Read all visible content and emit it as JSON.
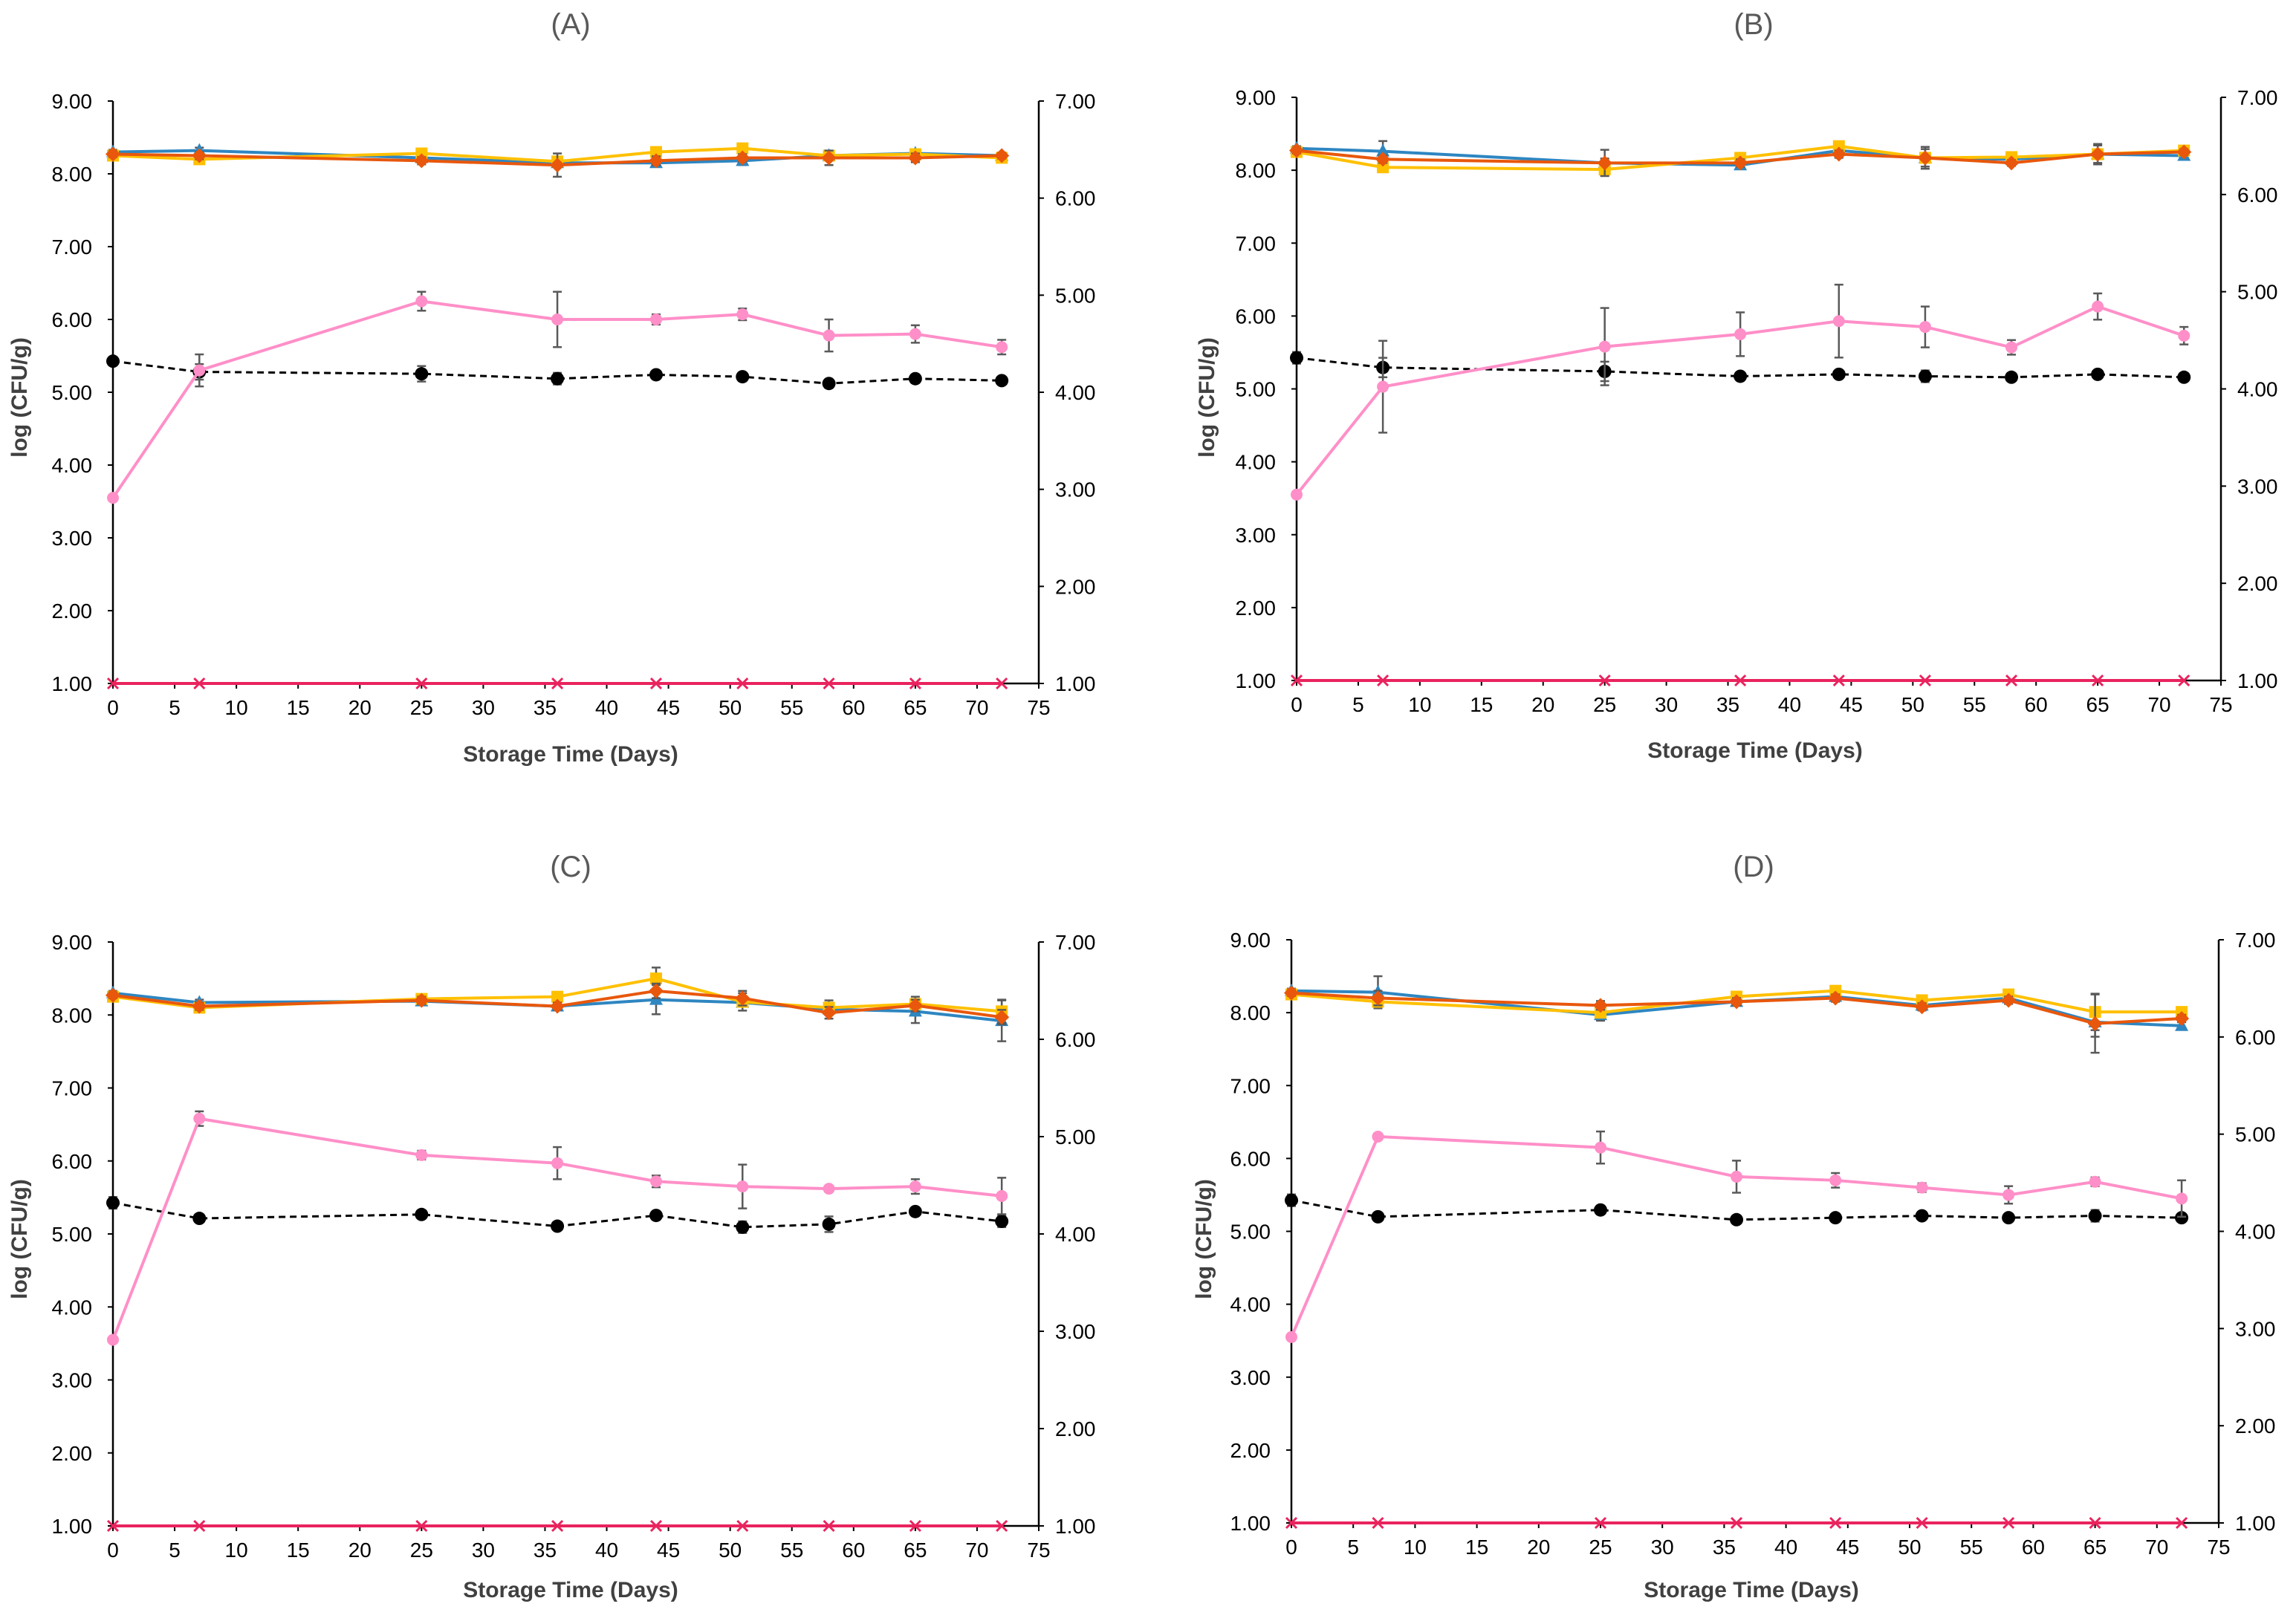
{
  "colors": {
    "blue": "#2E86C1",
    "orange": "#FFC000",
    "red": "#E8570C",
    "pink": "#FF8FC8",
    "black": "#000000",
    "magenta": "#E9235E"
  },
  "chart_data": [
    {
      "panel": "A",
      "title": "(A)",
      "type": "line",
      "xlabel": "Storage Time (Days)",
      "ylabel": "log (CFU/g)",
      "xlim": [
        0,
        75
      ],
      "ylim_left": [
        1,
        9
      ],
      "ylim_right": [
        1,
        7
      ],
      "x_ticks": [
        "0",
        "5",
        "10",
        "15",
        "20",
        "25",
        "30",
        "35",
        "40",
        "45",
        "50",
        "55",
        "60",
        "65",
        "70",
        "75"
      ],
      "y_left_ticks": [
        "1.00",
        "2.00",
        "3.00",
        "4.00",
        "5.00",
        "6.00",
        "7.00",
        "8.00",
        "9.00"
      ],
      "y_right_ticks": [
        "1.00",
        "2.00",
        "3.00",
        "4.00",
        "5.00",
        "6.00",
        "7.00"
      ],
      "x": [
        0,
        7,
        25,
        36,
        44,
        51,
        58,
        65,
        72
      ],
      "series": [
        {
          "name": "blue",
          "axis": "left",
          "color": "#2E86C1",
          "marker": "triangle",
          "values": [
            8.3,
            8.32,
            8.22,
            8.15,
            8.15,
            8.18,
            8.25,
            8.28,
            8.25
          ],
          "err": [
            0.03,
            0.04,
            0.04,
            0.05,
            0.05,
            0.06,
            0.04,
            0.04,
            0.03
          ]
        },
        {
          "name": "orange",
          "axis": "left",
          "color": "#FFC000",
          "marker": "square",
          "values": [
            8.25,
            8.2,
            8.28,
            8.17,
            8.3,
            8.35,
            8.25,
            8.27,
            8.22
          ],
          "err": [
            0.03,
            0.04,
            0.04,
            0.05,
            0.05,
            0.04,
            0.04,
            0.04,
            0.04
          ]
        },
        {
          "name": "red",
          "axis": "left",
          "color": "#E8570C",
          "marker": "diamond",
          "values": [
            8.27,
            8.25,
            8.18,
            8.12,
            8.18,
            8.22,
            8.22,
            8.22,
            8.25
          ],
          "err": [
            0.04,
            0.05,
            0.05,
            0.16,
            0.06,
            0.05,
            0.1,
            0.06,
            0.04
          ]
        },
        {
          "name": "pink",
          "axis": "left",
          "color": "#FF8FC8",
          "marker": "circle",
          "values": [
            3.55,
            5.3,
            6.25,
            6.0,
            6.0,
            6.07,
            5.78,
            5.8,
            5.62
          ],
          "err": [
            0.03,
            0.22,
            0.13,
            0.38,
            0.07,
            0.08,
            0.22,
            0.12,
            0.1
          ]
        },
        {
          "name": "black",
          "axis": "right",
          "color": "#000000",
          "marker": "circle",
          "dashed": true,
          "values": [
            4.32,
            4.21,
            4.19,
            4.14,
            4.18,
            4.16,
            4.09,
            4.14,
            4.12
          ],
          "err": [
            0.02,
            0.08,
            0.08,
            0.06,
            0.03,
            0.03,
            0.03,
            0.03,
            0.03
          ]
        },
        {
          "name": "magenta",
          "axis": "left",
          "color": "#E9235E",
          "marker": "x",
          "values": [
            1,
            1,
            1,
            1,
            1,
            1,
            1,
            1,
            1
          ],
          "err": [
            0,
            0,
            0,
            0,
            0,
            0,
            0,
            0,
            0
          ]
        }
      ]
    },
    {
      "panel": "B",
      "title": "(B)",
      "type": "line",
      "xlabel": "Storage Time (Days)",
      "ylabel": "log (CFU/g)",
      "xlim": [
        0,
        75
      ],
      "ylim_left": [
        1,
        9
      ],
      "ylim_right": [
        1,
        7
      ],
      "x_ticks": [
        "0",
        "5",
        "10",
        "15",
        "20",
        "25",
        "30",
        "35",
        "40",
        "45",
        "50",
        "55",
        "60",
        "65",
        "70",
        "75"
      ],
      "y_left_ticks": [
        "1.00",
        "2.00",
        "3.00",
        "4.00",
        "5.00",
        "6.00",
        "7.00",
        "8.00",
        "9.00"
      ],
      "y_right_ticks": [
        "1.00",
        "2.00",
        "3.00",
        "4.00",
        "5.00",
        "6.00",
        "7.00"
      ],
      "x": [
        0,
        7,
        25,
        36,
        44,
        51,
        58,
        65,
        72
      ],
      "series": [
        {
          "name": "blue",
          "axis": "left",
          "color": "#2E86C1",
          "marker": "triangle",
          "values": [
            8.3,
            8.26,
            8.1,
            8.07,
            8.27,
            8.17,
            8.15,
            8.22,
            8.2
          ],
          "err": [
            0.03,
            0.14,
            0.06,
            0.05,
            0.05,
            0.05,
            0.04,
            0.12,
            0.05
          ]
        },
        {
          "name": "orange",
          "axis": "left",
          "color": "#FFC000",
          "marker": "square",
          "values": [
            8.25,
            8.04,
            8.01,
            8.17,
            8.33,
            8.17,
            8.18,
            8.22,
            8.27
          ],
          "err": [
            0.03,
            0.05,
            0.08,
            0.05,
            0.04,
            0.15,
            0.04,
            0.04,
            0.04
          ]
        },
        {
          "name": "red",
          "axis": "left",
          "color": "#E8570C",
          "marker": "diamond",
          "values": [
            8.27,
            8.15,
            8.1,
            8.1,
            8.22,
            8.17,
            8.1,
            8.22,
            8.25
          ],
          "err": [
            0.04,
            0.05,
            0.18,
            0.05,
            0.05,
            0.12,
            0.04,
            0.14,
            0.04
          ]
        },
        {
          "name": "pink",
          "axis": "left",
          "color": "#FF8FC8",
          "marker": "circle",
          "values": [
            3.55,
            5.03,
            5.58,
            5.75,
            5.93,
            5.85,
            5.57,
            6.13,
            5.73
          ],
          "err": [
            0.03,
            0.63,
            0.53,
            0.3,
            0.5,
            0.28,
            0.1,
            0.18,
            0.12
          ]
        },
        {
          "name": "black",
          "axis": "right",
          "color": "#000000",
          "marker": "circle",
          "dashed": true,
          "values": [
            4.32,
            4.22,
            4.18,
            4.13,
            4.15,
            4.13,
            4.12,
            4.15,
            4.12
          ],
          "err": [
            0.06,
            0.1,
            0.1,
            0.04,
            0.04,
            0.06,
            0.04,
            0.04,
            0.03
          ]
        },
        {
          "name": "magenta",
          "axis": "left",
          "color": "#E9235E",
          "marker": "x",
          "values": [
            1,
            1,
            1,
            1,
            1,
            1,
            1,
            1,
            1
          ],
          "err": [
            0,
            0,
            0,
            0,
            0,
            0,
            0,
            0,
            0
          ]
        }
      ]
    },
    {
      "panel": "C",
      "title": "(C)",
      "type": "line",
      "xlabel": "Storage Time (Days)",
      "ylabel": "log (CFU/g)",
      "xlim": [
        0,
        75
      ],
      "ylim_left": [
        1,
        9
      ],
      "ylim_right": [
        1,
        7
      ],
      "x_ticks": [
        "0",
        "5",
        "10",
        "15",
        "20",
        "25",
        "30",
        "35",
        "40",
        "45",
        "50",
        "55",
        "60",
        "65",
        "70",
        "75"
      ],
      "y_left_ticks": [
        "1.00",
        "2.00",
        "3.00",
        "4.00",
        "5.00",
        "6.00",
        "7.00",
        "8.00",
        "9.00"
      ],
      "y_right_ticks": [
        "1.00",
        "2.00",
        "3.00",
        "4.00",
        "5.00",
        "6.00",
        "7.00"
      ],
      "x": [
        0,
        7,
        25,
        36,
        44,
        51,
        58,
        65,
        72
      ],
      "series": [
        {
          "name": "blue",
          "axis": "left",
          "color": "#2E86C1",
          "marker": "triangle",
          "values": [
            8.3,
            8.17,
            8.19,
            8.12,
            8.21,
            8.17,
            8.08,
            8.05,
            7.92
          ],
          "err": [
            0.03,
            0.04,
            0.05,
            0.05,
            0.2,
            0.05,
            0.06,
            0.16,
            0.28
          ]
        },
        {
          "name": "orange",
          "axis": "left",
          "color": "#FFC000",
          "marker": "square",
          "values": [
            8.25,
            8.1,
            8.22,
            8.25,
            8.5,
            8.18,
            8.1,
            8.15,
            8.05
          ],
          "err": [
            0.03,
            0.05,
            0.04,
            0.05,
            0.15,
            0.12,
            0.1,
            0.1,
            0.16
          ]
        },
        {
          "name": "red",
          "axis": "left",
          "color": "#E8570C",
          "marker": "diamond",
          "values": [
            8.27,
            8.12,
            8.2,
            8.12,
            8.33,
            8.23,
            8.03,
            8.13,
            7.97
          ],
          "err": [
            0.04,
            0.05,
            0.05,
            0.05,
            0.1,
            0.1,
            0.08,
            0.08,
            0.1
          ]
        },
        {
          "name": "pink",
          "axis": "left",
          "color": "#FF8FC8",
          "marker": "circle",
          "values": [
            3.55,
            6.58,
            6.08,
            5.97,
            5.72,
            5.65,
            5.62,
            5.65,
            5.52
          ],
          "err": [
            0.03,
            0.1,
            0.06,
            0.22,
            0.08,
            0.3,
            0.04,
            0.1,
            0.25
          ]
        },
        {
          "name": "black",
          "axis": "right",
          "color": "#000000",
          "marker": "circle",
          "dashed": true,
          "values": [
            4.32,
            4.16,
            4.2,
            4.08,
            4.19,
            4.07,
            4.1,
            4.23,
            4.13
          ],
          "err": [
            0.06,
            0.04,
            0.03,
            0.03,
            0.03,
            0.06,
            0.08,
            0.04,
            0.06
          ]
        },
        {
          "name": "magenta",
          "axis": "left",
          "color": "#E9235E",
          "marker": "x",
          "values": [
            1,
            1,
            1,
            1,
            1,
            1,
            1,
            1,
            1
          ],
          "err": [
            0,
            0,
            0,
            0,
            0,
            0,
            0,
            0,
            0
          ]
        }
      ]
    },
    {
      "panel": "D",
      "title": "(D)",
      "type": "line",
      "xlabel": "Storage Time (Days)",
      "ylabel": "log (CFU/g)",
      "xlim": [
        0,
        75
      ],
      "ylim_left": [
        1,
        9
      ],
      "ylim_right": [
        1,
        7
      ],
      "x_ticks": [
        "0",
        "5",
        "10",
        "15",
        "20",
        "25",
        "30",
        "35",
        "40",
        "45",
        "50",
        "55",
        "60",
        "65",
        "70",
        "75"
      ],
      "y_left_ticks": [
        "1.00",
        "2.00",
        "3.00",
        "4.00",
        "5.00",
        "6.00",
        "7.00",
        "8.00",
        "9.00"
      ],
      "y_right_ticks": [
        "1.00",
        "2.00",
        "3.00",
        "4.00",
        "5.00",
        "6.00",
        "7.00"
      ],
      "x": [
        0,
        7,
        25,
        36,
        44,
        51,
        58,
        65,
        72
      ],
      "series": [
        {
          "name": "blue",
          "axis": "left",
          "color": "#2E86C1",
          "marker": "triangle",
          "values": [
            8.3,
            8.28,
            7.97,
            8.15,
            8.22,
            8.1,
            8.2,
            7.87,
            7.82
          ],
          "err": [
            0.03,
            0.22,
            0.08,
            0.05,
            0.05,
            0.05,
            0.05,
            0.2,
            0.05
          ]
        },
        {
          "name": "orange",
          "axis": "left",
          "color": "#FFC000",
          "marker": "square",
          "values": [
            8.25,
            8.15,
            8.0,
            8.22,
            8.3,
            8.17,
            8.25,
            8.01,
            8.01
          ],
          "err": [
            0.03,
            0.05,
            0.05,
            0.05,
            0.05,
            0.05,
            0.05,
            0.25,
            0.05
          ]
        },
        {
          "name": "red",
          "axis": "left",
          "color": "#E8570C",
          "marker": "diamond",
          "values": [
            8.27,
            8.2,
            8.1,
            8.15,
            8.2,
            8.08,
            8.17,
            7.85,
            7.92
          ],
          "err": [
            0.04,
            0.1,
            0.06,
            0.05,
            0.05,
            0.05,
            0.05,
            0.4,
            0.05
          ]
        },
        {
          "name": "pink",
          "axis": "left",
          "color": "#FF8FC8",
          "marker": "circle",
          "values": [
            3.55,
            6.3,
            6.15,
            5.75,
            5.7,
            5.6,
            5.5,
            5.68,
            5.45
          ],
          "err": [
            0.03,
            0.04,
            0.22,
            0.22,
            0.1,
            0.06,
            0.12,
            0.06,
            0.25
          ]
        },
        {
          "name": "black",
          "axis": "right",
          "color": "#000000",
          "marker": "circle",
          "dashed": true,
          "values": [
            4.32,
            4.15,
            4.22,
            4.12,
            4.14,
            4.16,
            4.14,
            4.16,
            4.14
          ],
          "err": [
            0.06,
            0.04,
            0.03,
            0.03,
            0.03,
            0.04,
            0.03,
            0.06,
            0.04
          ]
        },
        {
          "name": "magenta",
          "axis": "left",
          "color": "#E9235E",
          "marker": "x",
          "values": [
            1,
            1,
            1,
            1,
            1,
            1,
            1,
            1,
            1
          ],
          "err": [
            0,
            0,
            0,
            0,
            0,
            0,
            0,
            0,
            0
          ]
        }
      ]
    }
  ]
}
